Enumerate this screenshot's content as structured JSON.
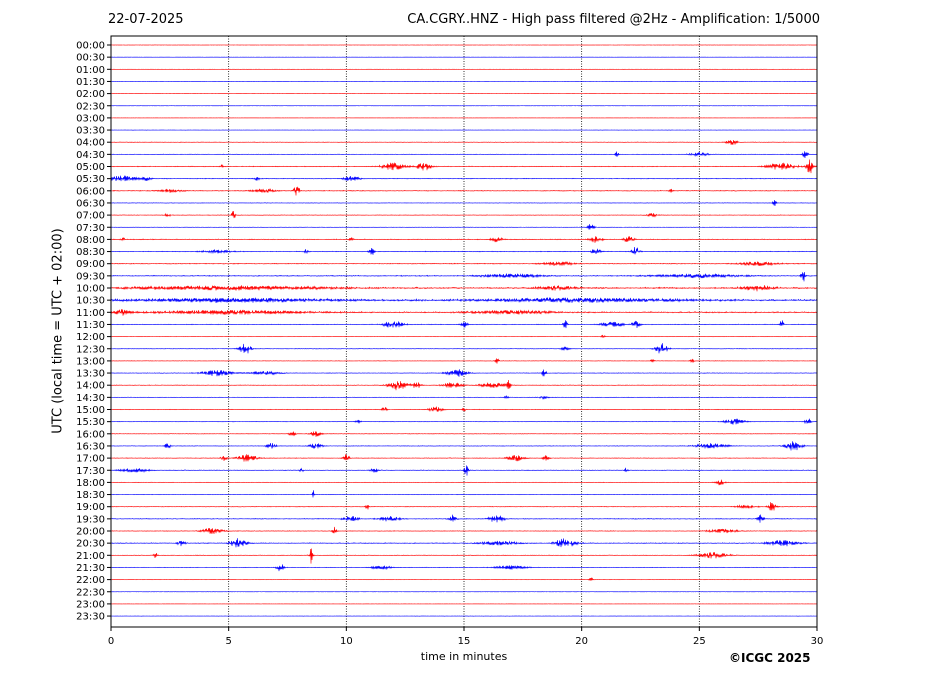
{
  "header": {
    "date": "22-07-2025",
    "title": "CA.CGRY..HNZ - High pass filtered @2Hz - Amplification: 1/5000"
  },
  "footer": {
    "copyright": "©ICGC 2025"
  },
  "chart_data": {
    "type": "line",
    "title": "CA.CGRY..HNZ - High pass filtered @2Hz - Amplification: 1/5000",
    "xlabel": "time in minutes",
    "ylabel": "UTC (local time = UTC + 02:00)",
    "xlim": [
      0,
      30
    ],
    "xticks": [
      0,
      5,
      10,
      15,
      20,
      25,
      30
    ],
    "grid_x": [
      5,
      10,
      15,
      20,
      25
    ],
    "colors": {
      "even": "#ff0000",
      "odd": "#0000ff"
    },
    "rows": [
      {
        "label": "00:00",
        "events": [],
        "noise": 0
      },
      {
        "label": "00:30",
        "events": [],
        "noise": 0
      },
      {
        "label": "01:00",
        "events": [],
        "noise": 0
      },
      {
        "label": "01:30",
        "events": [],
        "noise": 0
      },
      {
        "label": "02:00",
        "events": [],
        "noise": 0
      },
      {
        "label": "02:30",
        "events": [],
        "noise": 0
      },
      {
        "label": "03:00",
        "events": [],
        "noise": 0
      },
      {
        "label": "03:30",
        "events": [],
        "noise": 0
      },
      {
        "label": "04:00",
        "events": [
          [
            26.4,
            0.6,
            3
          ]
        ],
        "noise": 0.5
      },
      {
        "label": "04:30",
        "events": [
          [
            21.5,
            0.2,
            3
          ],
          [
            25.0,
            1.0,
            2
          ],
          [
            29.5,
            0.3,
            4
          ]
        ],
        "noise": 0.5
      },
      {
        "label": "05:00",
        "events": [
          [
            4.7,
            0.2,
            2
          ],
          [
            12.0,
            1.2,
            4
          ],
          [
            13.3,
            0.8,
            4
          ],
          [
            28.5,
            1.5,
            4
          ],
          [
            29.7,
            0.4,
            7
          ]
        ],
        "noise": 0.8
      },
      {
        "label": "05:30",
        "events": [
          [
            0.5,
            1.5,
            3
          ],
          [
            1.5,
            0.5,
            2
          ],
          [
            10.2,
            0.8,
            3
          ],
          [
            6.2,
            0.3,
            2
          ]
        ],
        "noise": 0.8
      },
      {
        "label": "06:00",
        "events": [
          [
            2.5,
            1.2,
            2
          ],
          [
            6.5,
            1.2,
            2
          ],
          [
            7.9,
            0.3,
            6
          ],
          [
            23.8,
            0.2,
            2
          ]
        ],
        "noise": 0.9
      },
      {
        "label": "06:30",
        "events": [
          [
            28.2,
            0.2,
            3
          ]
        ],
        "noise": 0.4
      },
      {
        "label": "07:00",
        "events": [
          [
            2.4,
            0.3,
            2
          ],
          [
            5.2,
            0.2,
            5
          ],
          [
            23.0,
            0.5,
            2
          ]
        ],
        "noise": 0.5
      },
      {
        "label": "07:30",
        "events": [
          [
            20.4,
            0.3,
            5
          ]
        ],
        "noise": 0.3
      },
      {
        "label": "08:00",
        "events": [
          [
            0.5,
            0.2,
            2
          ],
          [
            10.2,
            0.2,
            2
          ],
          [
            16.4,
            0.6,
            3
          ],
          [
            20.6,
            0.6,
            4
          ],
          [
            22.0,
            0.5,
            3
          ]
        ],
        "noise": 0.9
      },
      {
        "label": "08:30",
        "events": [
          [
            4.5,
            1.5,
            2
          ],
          [
            8.3,
            0.2,
            3
          ],
          [
            11.1,
            0.3,
            4
          ],
          [
            20.6,
            0.5,
            3
          ],
          [
            22.3,
            0.4,
            5
          ]
        ],
        "noise": 0.8
      },
      {
        "label": "09:00",
        "events": [
          [
            19.0,
            1.5,
            2
          ],
          [
            27.5,
            2.0,
            2
          ]
        ],
        "noise": 1.0
      },
      {
        "label": "09:30",
        "events": [
          [
            17.0,
            3.0,
            2
          ],
          [
            25.0,
            4.0,
            2
          ],
          [
            29.4,
            0.2,
            8
          ]
        ],
        "noise": 1.2
      },
      {
        "label": "10:00",
        "events": [
          [
            5.0,
            10.0,
            2
          ],
          [
            27.5,
            1.5,
            3
          ],
          [
            19.0,
            2.0,
            2
          ]
        ],
        "noise": 2.0
      },
      {
        "label": "10:30",
        "events": [
          [
            5.0,
            10.0,
            2
          ],
          [
            20.0,
            10.0,
            2
          ]
        ],
        "noise": 2.3
      },
      {
        "label": "11:00",
        "events": [
          [
            0.5,
            0.8,
            3
          ],
          [
            5.0,
            8.0,
            2
          ],
          [
            17.0,
            4.0,
            2
          ]
        ],
        "noise": 1.6
      },
      {
        "label": "11:30",
        "events": [
          [
            12.0,
            1.0,
            4
          ],
          [
            15.0,
            0.4,
            3
          ],
          [
            19.3,
            0.2,
            5
          ],
          [
            21.3,
            1.0,
            4
          ],
          [
            22.3,
            0.4,
            4
          ],
          [
            28.5,
            0.2,
            5
          ]
        ],
        "noise": 0.7
      },
      {
        "label": "12:00",
        "events": [
          [
            20.9,
            0.2,
            2
          ]
        ],
        "noise": 0.3
      },
      {
        "label": "12:30",
        "events": [
          [
            5.7,
            0.6,
            6
          ],
          [
            19.3,
            0.4,
            2
          ],
          [
            23.4,
            0.6,
            7
          ]
        ],
        "noise": 0.5
      },
      {
        "label": "13:00",
        "events": [
          [
            16.4,
            0.2,
            3
          ],
          [
            23.0,
            0.2,
            2
          ],
          [
            24.7,
            0.2,
            2
          ]
        ],
        "noise": 0.4
      },
      {
        "label": "13:30",
        "events": [
          [
            4.5,
            1.5,
            3
          ],
          [
            6.5,
            1.5,
            2
          ],
          [
            14.7,
            1.0,
            4
          ],
          [
            18.4,
            0.2,
            6
          ]
        ],
        "noise": 0.6
      },
      {
        "label": "14:00",
        "events": [
          [
            12.2,
            1.0,
            5
          ],
          [
            13.0,
            0.4,
            4
          ],
          [
            14.5,
            1.0,
            3
          ],
          [
            16.2,
            1.2,
            3
          ],
          [
            16.9,
            0.2,
            5
          ]
        ],
        "noise": 0.6
      },
      {
        "label": "14:30",
        "events": [
          [
            16.8,
            0.2,
            2
          ],
          [
            18.4,
            0.5,
            2
          ]
        ],
        "noise": 0.4
      },
      {
        "label": "15:00",
        "events": [
          [
            11.6,
            0.3,
            3
          ],
          [
            13.8,
            0.7,
            3
          ],
          [
            15.0,
            0.2,
            2
          ]
        ],
        "noise": 0.5
      },
      {
        "label": "15:30",
        "events": [
          [
            10.5,
            0.3,
            2
          ],
          [
            26.5,
            1.0,
            3
          ],
          [
            29.6,
            0.3,
            5
          ]
        ],
        "noise": 0.5
      },
      {
        "label": "16:00",
        "events": [
          [
            7.7,
            0.3,
            3
          ],
          [
            8.7,
            0.5,
            4
          ]
        ],
        "noise": 0.5
      },
      {
        "label": "16:30",
        "events": [
          [
            2.4,
            0.3,
            3
          ],
          [
            6.8,
            0.5,
            3
          ],
          [
            8.7,
            0.6,
            3
          ],
          [
            25.5,
            1.5,
            3
          ],
          [
            29.0,
            0.8,
            5
          ]
        ],
        "noise": 0.6
      },
      {
        "label": "17:00",
        "events": [
          [
            4.8,
            0.3,
            3
          ],
          [
            5.8,
            1.0,
            4
          ],
          [
            10.0,
            0.3,
            4
          ],
          [
            17.2,
            0.8,
            3
          ],
          [
            18.5,
            0.3,
            4
          ]
        ],
        "noise": 0.6
      },
      {
        "label": "17:30",
        "events": [
          [
            1.0,
            1.5,
            2
          ],
          [
            8.1,
            0.2,
            3
          ],
          [
            11.2,
            0.4,
            3
          ],
          [
            15.1,
            0.2,
            6
          ],
          [
            21.9,
            0.2,
            3
          ]
        ],
        "noise": 0.7
      },
      {
        "label": "18:00",
        "events": [
          [
            25.9,
            0.5,
            3
          ]
        ],
        "noise": 0.4
      },
      {
        "label": "18:30",
        "events": [
          [
            8.6,
            0.1,
            6
          ]
        ],
        "noise": 0.4
      },
      {
        "label": "19:00",
        "events": [
          [
            10.9,
            0.2,
            4
          ],
          [
            28.1,
            0.4,
            6
          ],
          [
            27.0,
            1.0,
            2
          ]
        ],
        "noise": 0.6
      },
      {
        "label": "19:30",
        "events": [
          [
            10.2,
            0.8,
            3
          ],
          [
            11.8,
            1.0,
            3
          ],
          [
            14.5,
            0.4,
            4
          ],
          [
            16.4,
            0.8,
            4
          ],
          [
            27.6,
            0.3,
            5
          ]
        ],
        "noise": 0.9
      },
      {
        "label": "20:00",
        "events": [
          [
            4.3,
            1.0,
            3
          ],
          [
            9.5,
            0.2,
            5
          ],
          [
            26.0,
            1.5,
            2
          ]
        ],
        "noise": 0.7
      },
      {
        "label": "20:30",
        "events": [
          [
            3.0,
            0.4,
            3
          ],
          [
            5.4,
            0.8,
            5
          ],
          [
            19.3,
            1.0,
            5
          ],
          [
            16.5,
            2.0,
            2
          ],
          [
            28.5,
            1.5,
            3
          ]
        ],
        "noise": 1.0
      },
      {
        "label": "21:00",
        "events": [
          [
            1.9,
            0.2,
            3
          ],
          [
            8.5,
            0.2,
            8
          ],
          [
            25.6,
            1.5,
            3
          ]
        ],
        "noise": 0.6
      },
      {
        "label": "21:30",
        "events": [
          [
            7.2,
            0.4,
            4
          ],
          [
            17.0,
            1.5,
            2
          ],
          [
            11.5,
            1.0,
            2
          ]
        ],
        "noise": 0.5
      },
      {
        "label": "22:00",
        "events": [
          [
            20.4,
            0.2,
            2
          ]
        ],
        "noise": 0.2
      },
      {
        "label": "22:30",
        "events": [],
        "noise": 0
      },
      {
        "label": "23:00",
        "events": [],
        "noise": 0
      },
      {
        "label": "23:30",
        "events": [],
        "noise": 0
      }
    ]
  }
}
